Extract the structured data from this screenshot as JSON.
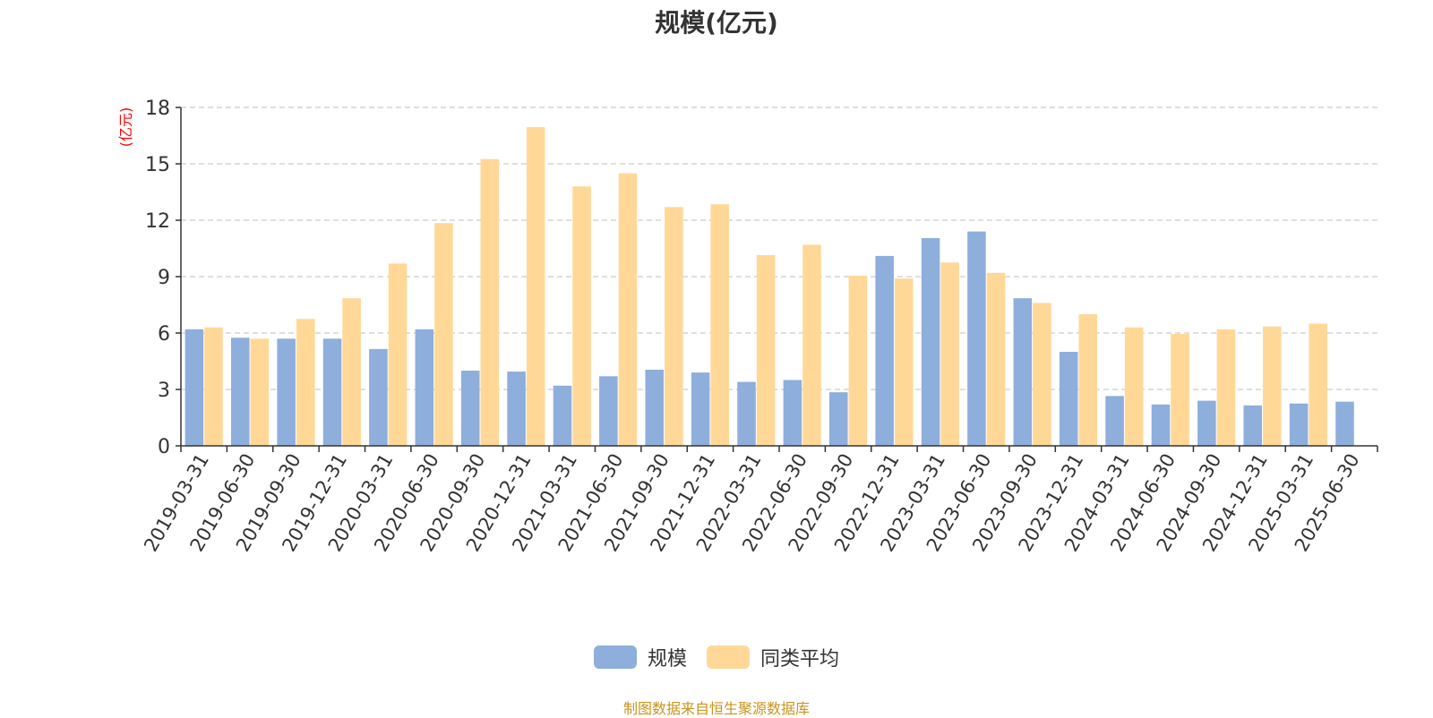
{
  "chart_data": {
    "type": "bar",
    "title": "规模(亿元)",
    "ylabel": "(亿元)",
    "xlabel": "",
    "ylim": [
      0,
      18
    ],
    "yticks": [
      0,
      3,
      6,
      9,
      12,
      15,
      18
    ],
    "grid": true,
    "legend_position": "bottom-center",
    "categories": [
      "2019-03-31",
      "2019-06-30",
      "2019-09-30",
      "2019-12-31",
      "2020-03-31",
      "2020-06-30",
      "2020-09-30",
      "2020-12-31",
      "2021-03-31",
      "2021-06-30",
      "2021-09-30",
      "2021-12-31",
      "2022-03-31",
      "2022-06-30",
      "2022-09-30",
      "2022-12-31",
      "2023-03-31",
      "2023-06-30",
      "2023-09-30",
      "2023-12-31",
      "2024-03-31",
      "2024-06-30",
      "2024-09-30",
      "2024-12-31",
      "2025-03-31",
      "2025-06-30"
    ],
    "series": [
      {
        "name": "规模",
        "color": "#8eaedc",
        "values": [
          6.2,
          5.75,
          5.7,
          5.7,
          5.15,
          6.2,
          4.0,
          3.95,
          3.2,
          3.7,
          4.05,
          3.9,
          3.4,
          3.5,
          2.85,
          10.1,
          11.05,
          11.4,
          7.85,
          5.0,
          2.65,
          2.2,
          2.4,
          2.15,
          2.25,
          2.35
        ]
      },
      {
        "name": "同类平均",
        "color": "#ffd898",
        "values": [
          6.3,
          5.7,
          6.75,
          7.85,
          9.7,
          11.85,
          15.25,
          16.95,
          13.8,
          14.5,
          12.7,
          12.85,
          10.15,
          10.7,
          9.05,
          8.9,
          9.75,
          9.2,
          7.6,
          7.0,
          6.3,
          5.95,
          6.2,
          6.35,
          6.5,
          null
        ]
      }
    ]
  },
  "source_note": "制图数据来自恒生聚源数据库",
  "colors": {
    "axis": "#333333",
    "grid": "#cccccc",
    "ylabel": "#ff0000",
    "source": "#c8951e"
  }
}
